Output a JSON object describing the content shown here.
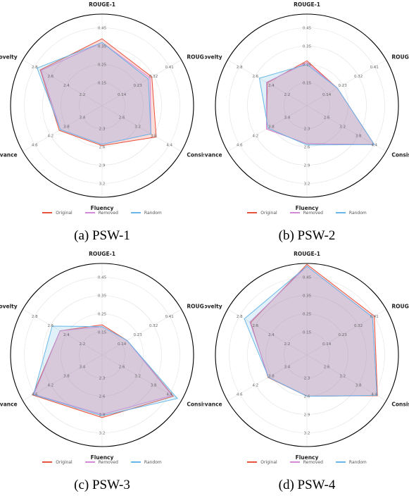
{
  "legend": [
    {
      "name": "Original",
      "color": "#e8533f"
    },
    {
      "name": "Removed",
      "color": "#d58ad8"
    },
    {
      "name": "Random",
      "color": "#69b7e8"
    }
  ],
  "chart_data": [
    {
      "type": "radar",
      "caption": "(a) PSW-1",
      "axes": [
        "ROUGE-1",
        "ROUGE-L",
        "Consistency",
        "Fluency",
        "Relevance",
        "Novelty"
      ],
      "axis_ticks": [
        [
          "0.15",
          "0.25",
          "0.35",
          "0.45"
        ],
        [
          "0.14",
          "0.23",
          "0.32",
          "0.41"
        ],
        [
          "2.6",
          "3.2",
          "3.8",
          "4.4"
        ],
        [
          "2.3",
          "2.6",
          "2.9",
          "3.2"
        ],
        [
          "3.4",
          "3.8",
          "4.2",
          "4.6"
        ],
        [
          "2.2",
          "2.4",
          "2.6",
          "2.8"
        ]
      ],
      "series": [
        {
          "name": "Original",
          "values": [
            0.39,
            0.31,
            3.9,
            2.58,
            3.98,
            2.73
          ]
        },
        {
          "name": "Removed",
          "values": [
            0.37,
            0.3,
            3.7,
            2.56,
            3.95,
            2.72
          ]
        },
        {
          "name": "Random",
          "values": [
            0.37,
            0.29,
            3.7,
            2.56,
            3.95,
            2.77
          ]
        }
      ]
    },
    {
      "type": "radar",
      "caption": "(b) PSW-2",
      "axes": [
        "ROUGE-1",
        "ROUGE-L",
        "Consistency",
        "Fluency",
        "Relevance",
        "Novelty"
      ],
      "axis_ticks": [
        [
          "0.15",
          "0.25",
          "0.35",
          "0.45"
        ],
        [
          "0.14",
          "0.23",
          "0.32",
          "0.41"
        ],
        [
          "2.6",
          "3.2",
          "3.8",
          "4.4"
        ],
        [
          "2.3",
          "2.6",
          "2.9",
          "3.2"
        ],
        [
          "3.4",
          "3.8",
          "4.2",
          "4.6"
        ],
        [
          "2.2",
          "2.4",
          "2.6",
          "2.8"
        ]
      ],
      "series": [
        {
          "name": "Original",
          "values": [
            0.27,
            0.2,
            4.4,
            2.55,
            3.92,
            2.45
          ]
        },
        {
          "name": "Removed",
          "values": [
            0.26,
            0.2,
            4.4,
            2.55,
            3.92,
            2.46
          ]
        },
        {
          "name": "Random",
          "values": [
            0.25,
            0.2,
            4.4,
            2.57,
            3.88,
            2.55
          ]
        }
      ]
    },
    {
      "type": "radar",
      "caption": "(c) PSW-3",
      "axes": [
        "ROUGE-1",
        "ROUGE-L",
        "Consistency",
        "Fluency",
        "Relevance",
        "Novelty"
      ],
      "axis_ticks": [
        [
          "0.15",
          "0.25",
          "0.35",
          "0.45"
        ],
        [
          "0.14",
          "0.23",
          "0.32",
          "0.41"
        ],
        [
          "2.6",
          "3.2",
          "3.8",
          "4.4"
        ],
        [
          "2.3",
          "2.6",
          "2.9",
          "3.2"
        ],
        [
          "3.4",
          "3.8",
          "4.2",
          "4.6"
        ],
        [
          "2.2",
          "2.4",
          "2.6",
          "2.8"
        ]
      ],
      "series": [
        {
          "name": "Original",
          "values": [
            0.19,
            0.17,
            4.55,
            2.95,
            4.65,
            2.48
          ]
        },
        {
          "name": "Removed",
          "values": [
            0.18,
            0.17,
            4.5,
            2.9,
            4.62,
            2.48
          ]
        },
        {
          "name": "Random",
          "values": [
            0.18,
            0.17,
            4.7,
            2.92,
            4.63,
            2.58
          ]
        }
      ]
    },
    {
      "type": "radar",
      "caption": "(d) PSW-4",
      "axes": [
        "ROUGE-1",
        "ROUGE-L",
        "Consistency",
        "Fluency",
        "Relevance",
        "Novelty"
      ],
      "axis_ticks": [
        [
          "0.15",
          "0.25",
          "0.35",
          "0.45"
        ],
        [
          "0.14",
          "0.23",
          "0.32",
          "0.41"
        ],
        [
          "2.6",
          "3.2",
          "3.8",
          "4.4"
        ],
        [
          "2.3",
          "2.6",
          "2.9",
          "3.2"
        ],
        [
          "3.4",
          "3.8",
          "4.2",
          "4.6"
        ],
        [
          "2.2",
          "2.4",
          "2.6",
          "2.8"
        ]
      ],
      "series": [
        {
          "name": "Original",
          "values": [
            0.52,
            0.41,
            4.52,
            2.6,
            3.88,
            2.66
          ]
        },
        {
          "name": "Removed",
          "values": [
            0.51,
            0.4,
            4.5,
            2.6,
            3.87,
            2.67
          ]
        },
        {
          "name": "Random",
          "values": [
            0.51,
            0.4,
            4.5,
            2.6,
            3.87,
            2.74
          ]
        }
      ]
    }
  ]
}
